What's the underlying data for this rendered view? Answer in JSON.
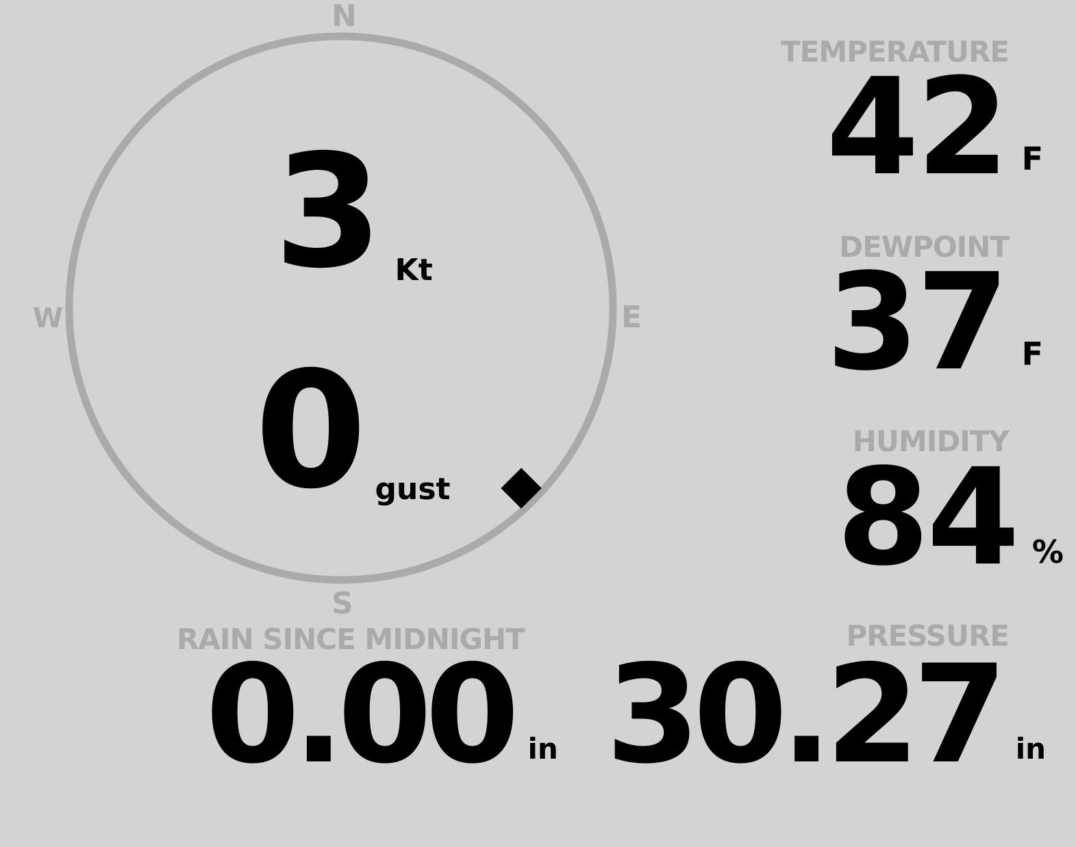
{
  "colors": {
    "background": "#d3d3d3",
    "label": "#aaaaaa",
    "value": "#000000",
    "compass_ring": "#aaaaaa"
  },
  "wind": {
    "cardinals": {
      "n": "N",
      "e": "E",
      "s": "S",
      "w": "W"
    },
    "speed": "3",
    "speed_unit": "Kt",
    "gust": "0",
    "gust_unit": "gust",
    "direction_deg": 135,
    "indicator_icon": "diamond-marker"
  },
  "temperature": {
    "label": "TEMPERATURE",
    "value": "42",
    "unit": "F"
  },
  "dewpoint": {
    "label": "DEWPOINT",
    "value": "37",
    "unit": "F"
  },
  "humidity": {
    "label": "HUMIDITY",
    "value": "84",
    "unit": "%"
  },
  "rain": {
    "label": "RAIN SINCE MIDNIGHT",
    "value": "0.00",
    "unit": "in"
  },
  "pressure": {
    "label": "PRESSURE",
    "value": "30.27",
    "unit": "in"
  }
}
